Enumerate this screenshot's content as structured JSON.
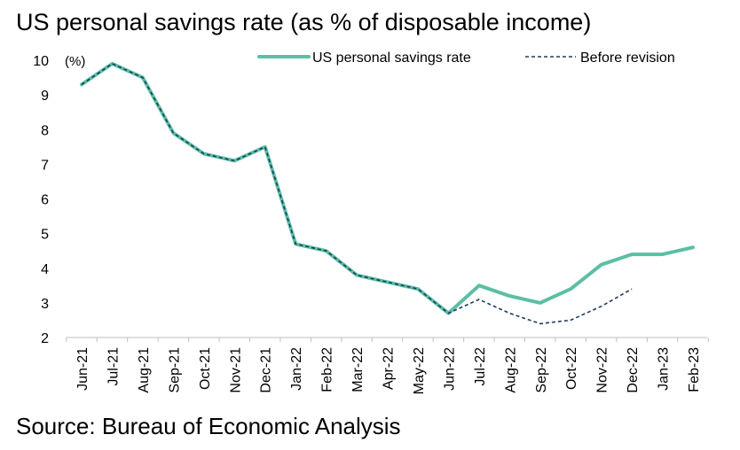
{
  "title": "US personal savings rate (as % of disposable income)",
  "source": "Source: Bureau of Economic Analysis",
  "chart_data": {
    "type": "line",
    "ylabel": "(%)",
    "ylim": [
      2,
      10
    ],
    "yticks": [
      2,
      3,
      4,
      5,
      6,
      7,
      8,
      9,
      10
    ],
    "grid": false,
    "legend_position": "top-right",
    "categories": [
      "Jun-21",
      "Jul-21",
      "Aug-21",
      "Sep-21",
      "Oct-21",
      "Nov-21",
      "Dec-21",
      "Jan-22",
      "Feb-22",
      "Mar-22",
      "Apr-22",
      "May-22",
      "Jun-22",
      "Jul-22",
      "Aug-22",
      "Sep-22",
      "Oct-22",
      "Nov-22",
      "Dec-22",
      "Jan-23",
      "Feb-23"
    ],
    "series": [
      {
        "name": "US personal savings rate",
        "color": "#5bbfa4",
        "style": "solid",
        "values": [
          9.3,
          9.9,
          9.5,
          7.9,
          7.3,
          7.1,
          7.5,
          4.7,
          4.5,
          3.8,
          3.6,
          3.4,
          2.7,
          3.5,
          3.2,
          3.0,
          3.4,
          4.1,
          4.4,
          4.4,
          4.6
        ]
      },
      {
        "name": "Before revision",
        "color": "#1f3b5c",
        "style": "dashed",
        "values": [
          9.3,
          9.9,
          9.5,
          7.9,
          7.3,
          7.1,
          7.5,
          4.7,
          4.5,
          3.8,
          3.6,
          3.4,
          2.7,
          3.1,
          2.7,
          2.4,
          2.5,
          2.9,
          3.4,
          null,
          null
        ]
      }
    ]
  }
}
